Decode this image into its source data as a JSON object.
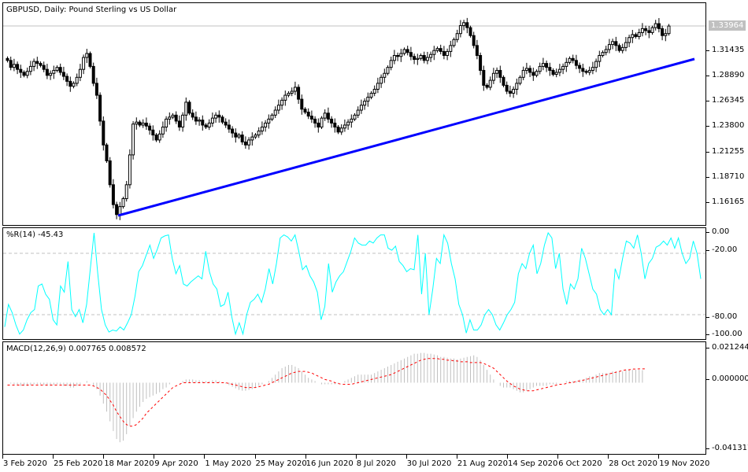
{
  "main_panel": {
    "title": "GBPUSD, Daily:  Pound Sterling vs US Dollar",
    "current_price": "1.33964",
    "price_axis": [
      "1.31435",
      "1.28890",
      "1.26345",
      "1.23800",
      "1.21255",
      "1.18710",
      "1.16165"
    ],
    "trendline_color": "#0000ff"
  },
  "wpr_panel": {
    "title": "%R(14) -45.43",
    "axis": [
      "0.00",
      "-20.00",
      "-80.00",
      "-100.00"
    ],
    "line_color": "#00ffff"
  },
  "macd_panel": {
    "title": "MACD(12,26,9) 0.007765 0.008572",
    "axis": [
      "0.021244",
      "0.000000",
      "-0.041317"
    ],
    "signal_color": "#ff0000",
    "histogram_color": "#c0c0c0"
  },
  "date_axis": [
    "3 Feb 2020",
    "25 Feb 2020",
    "18 Mar 2020",
    "9 Apr 2020",
    "1 May 2020",
    "25 May 2020",
    "16 Jun 2020",
    "8 Jul 2020",
    "30 Jul 2020",
    "21 Aug 2020",
    "14 Sep 2020",
    "6 Oct 2020",
    "28 Oct 2020",
    "19 Nov 2020"
  ],
  "chart_data": [
    {
      "type": "candlestick",
      "title": "GBPUSD, Daily: Pound Sterling vs US Dollar",
      "xlabel": "",
      "ylabel": "",
      "ylim": [
        1.145,
        1.352
      ],
      "x_ticks": [
        "3 Feb 2020",
        "25 Feb 2020",
        "18 Mar 2020",
        "9 Apr 2020",
        "1 May 2020",
        "25 May 2020",
        "16 Jun 2020",
        "8 Jul 2020",
        "30 Jul 2020",
        "21 Aug 2020",
        "14 Sep 2020",
        "6 Oct 2020",
        "28 Oct 2020",
        "19 Nov 2020"
      ],
      "y_ticks": [
        1.31435,
        1.2889,
        1.26345,
        1.238,
        1.21255,
        1.1871,
        1.16165
      ],
      "last_price": 1.33964,
      "closes": [
        1.305,
        1.298,
        1.301,
        1.296,
        1.293,
        1.29,
        1.294,
        1.299,
        1.304,
        1.302,
        1.3,
        1.296,
        1.29,
        1.292,
        1.295,
        1.298,
        1.293,
        1.289,
        1.284,
        1.279,
        1.282,
        1.288,
        1.296,
        1.308,
        1.312,
        1.299,
        1.282,
        1.27,
        1.244,
        1.22,
        1.204,
        1.18,
        1.16,
        1.15,
        1.158,
        1.166,
        1.18,
        1.21,
        1.241,
        1.243,
        1.24,
        1.242,
        1.239,
        1.235,
        1.23,
        1.225,
        1.231,
        1.238,
        1.246,
        1.248,
        1.25,
        1.244,
        1.238,
        1.25,
        1.263,
        1.252,
        1.248,
        1.244,
        1.245,
        1.24,
        1.238,
        1.242,
        1.247,
        1.25,
        1.248,
        1.243,
        1.24,
        1.236,
        1.232,
        1.228,
        1.23,
        1.223,
        1.22,
        1.225,
        1.228,
        1.23,
        1.234,
        1.238,
        1.242,
        1.246,
        1.25,
        1.255,
        1.26,
        1.265,
        1.27,
        1.272,
        1.274,
        1.278,
        1.266,
        1.256,
        1.253,
        1.249,
        1.246,
        1.242,
        1.238,
        1.247,
        1.252,
        1.246,
        1.242,
        1.238,
        1.233,
        1.237,
        1.24,
        1.243,
        1.246,
        1.25,
        1.255,
        1.26,
        1.264,
        1.268,
        1.272,
        1.276,
        1.282,
        1.288,
        1.292,
        1.298,
        1.305,
        1.31,
        1.309,
        1.312,
        1.316,
        1.313,
        1.309,
        1.306,
        1.307,
        1.31,
        1.305,
        1.308,
        1.311,
        1.315,
        1.317,
        1.314,
        1.31,
        1.314,
        1.32,
        1.326,
        1.332,
        1.34,
        1.343,
        1.338,
        1.33,
        1.32,
        1.31,
        1.295,
        1.28,
        1.278,
        1.285,
        1.292,
        1.295,
        1.288,
        1.28,
        1.274,
        1.272,
        1.276,
        1.282,
        1.288,
        1.295,
        1.297,
        1.293,
        1.29,
        1.294,
        1.299,
        1.302,
        1.298,
        1.295,
        1.291,
        1.293,
        1.296,
        1.299,
        1.303,
        1.307,
        1.305,
        1.3,
        1.297,
        1.294,
        1.293,
        1.295,
        1.298,
        1.304,
        1.31,
        1.313,
        1.316,
        1.321,
        1.324,
        1.32,
        1.315,
        1.318,
        1.323,
        1.328,
        1.331,
        1.329,
        1.333,
        1.337,
        1.335,
        1.333,
        1.338,
        1.342,
        1.337,
        1.33,
        1.332,
        1.3396
      ]
    },
    {
      "type": "line",
      "title": "%R(14)",
      "current_value": -45.43,
      "ylim": [
        -100,
        0
      ],
      "levels": [
        -20,
        -80
      ],
      "values": [
        -92,
        -70,
        -78,
        -90,
        -99,
        -95,
        -85,
        -78,
        -75,
        -52,
        -50,
        -60,
        -65,
        -85,
        -90,
        -52,
        -58,
        -28,
        -75,
        -82,
        -75,
        -88,
        -70,
        -35,
        0,
        -40,
        -75,
        -90,
        -97,
        -95,
        -96,
        -92,
        -95,
        -88,
        -80,
        -62,
        -38,
        -32,
        -22,
        -12,
        -25,
        -16,
        -5,
        -3,
        -2,
        -25,
        -40,
        -32,
        -50,
        -52,
        -48,
        -45,
        -42,
        -45,
        -18,
        -38,
        -50,
        -55,
        -72,
        -70,
        -58,
        -82,
        -99,
        -88,
        -99,
        -80,
        -68,
        -65,
        -60,
        -68,
        -55,
        -35,
        -50,
        -30,
        -5,
        -2,
        -4,
        -8,
        -2,
        -18,
        -36,
        -32,
        -42,
        -48,
        -58,
        -85,
        -72,
        -30,
        -58,
        -48,
        -42,
        -38,
        -28,
        -18,
        -5,
        -10,
        -12,
        -12,
        -8,
        -10,
        -5,
        -2,
        -2,
        -15,
        -17,
        -13,
        -28,
        -32,
        -38,
        -35,
        -36,
        -2,
        -60,
        -20,
        -80,
        -55,
        -25,
        -30,
        -2,
        -10,
        -30,
        -45,
        -70,
        -80,
        -98,
        -85,
        -95,
        -95,
        -90,
        -80,
        -75,
        -80,
        -90,
        -95,
        -88,
        -80,
        -75,
        -68,
        -40,
        -30,
        -35,
        -20,
        -12,
        -40,
        -30,
        -12,
        0,
        -5,
        -35,
        -20,
        -55,
        -70,
        -50,
        -55,
        -45,
        -15,
        -25,
        -40,
        -55,
        -60,
        -75,
        -80,
        -75,
        -80,
        -35,
        -45,
        -25,
        -8,
        -10,
        -15,
        -2,
        -20,
        -45,
        -30,
        -25,
        -14,
        -12,
        -8,
        -12,
        -5,
        -15,
        -5,
        -20,
        -30,
        -25,
        -8,
        -20,
        -45
      ]
    },
    {
      "type": "bar+line",
      "title": "MACD(12,26,9)",
      "macd_value": 0.007765,
      "signal_value": 0.008572,
      "ylim": [
        -0.041317,
        0.021244
      ],
      "series": [
        {
          "name": "MACD histogram",
          "color": "#c0c0c0"
        },
        {
          "name": "Signal",
          "color": "#ff0000",
          "style": "dashed"
        }
      ],
      "macd": [
        0.0,
        -0.0005,
        -0.001,
        -0.0015,
        -0.002,
        -0.002,
        -0.002,
        -0.0015,
        -0.001,
        -0.001,
        -0.001,
        -0.0015,
        -0.002,
        -0.002,
        -0.0015,
        -0.001,
        -0.001,
        -0.002,
        -0.002,
        -0.003,
        -0.003,
        -0.002,
        -0.001,
        0.0,
        0.001,
        0.0,
        -0.002,
        -0.004,
        -0.008,
        -0.013,
        -0.018,
        -0.024,
        -0.03,
        -0.035,
        -0.037,
        -0.036,
        -0.032,
        -0.027,
        -0.022,
        -0.018,
        -0.015,
        -0.012,
        -0.01,
        -0.009,
        -0.008,
        -0.007,
        -0.006,
        -0.004,
        -0.003,
        -0.001,
        0.0,
        0.0,
        0.0,
        0.001,
        0.002,
        0.002,
        0.002,
        0.0015,
        0.0015,
        0.001,
        0.001,
        0.001,
        0.0015,
        0.0015,
        0.001,
        0.0,
        -0.0005,
        -0.0015,
        -0.0025,
        -0.0035,
        -0.0045,
        -0.005,
        -0.005,
        -0.0045,
        -0.004,
        -0.003,
        -0.002,
        -0.001,
        0.0,
        0.001,
        0.003,
        0.005,
        0.007,
        0.009,
        0.01,
        0.011,
        0.011,
        0.01,
        0.009,
        0.007,
        0.005,
        0.003,
        0.002,
        0.001,
        0.0,
        -0.001,
        -0.001,
        -0.001,
        -0.001,
        -0.001,
        -0.0005,
        0.0,
        0.001,
        0.002,
        0.003,
        0.004,
        0.005,
        0.005,
        0.005,
        0.005,
        0.005,
        0.006,
        0.007,
        0.008,
        0.009,
        0.01,
        0.011,
        0.012,
        0.013,
        0.014,
        0.015,
        0.016,
        0.017,
        0.018,
        0.018,
        0.0185,
        0.0185,
        0.018,
        0.018,
        0.0175,
        0.017,
        0.016,
        0.016,
        0.0155,
        0.015,
        0.015,
        0.0145,
        0.015,
        0.0155,
        0.016,
        0.0165,
        0.017,
        0.016,
        0.014,
        0.011,
        0.008,
        0.005,
        0.002,
        0.0,
        -0.002,
        -0.003,
        -0.003,
        -0.003,
        -0.004,
        -0.005,
        -0.006,
        -0.006,
        -0.005,
        -0.004,
        -0.003,
        -0.002,
        -0.002,
        -0.002,
        -0.002,
        -0.001,
        -0.001,
        -0.001,
        0.0,
        0.0,
        0.001,
        0.001,
        0.001,
        0.001,
        0.002,
        0.002,
        0.003,
        0.004,
        0.004,
        0.005,
        0.006,
        0.006,
        0.006,
        0.006,
        0.007,
        0.007,
        0.007,
        0.007,
        0.008,
        0.008,
        0.008,
        0.008,
        0.008,
        0.0078
      ],
      "signal": [
        -0.0015,
        -0.0015,
        -0.0015,
        -0.0015,
        -0.0015,
        -0.0015,
        -0.0015,
        -0.0015,
        -0.0015,
        -0.0015,
        -0.0015,
        -0.0015,
        -0.0015,
        -0.0015,
        -0.0015,
        -0.0015,
        -0.0015,
        -0.0015,
        -0.0015,
        -0.0015,
        -0.0015,
        -0.0015,
        -0.0015,
        -0.0015,
        -0.0015,
        -0.0015,
        -0.002,
        -0.003,
        -0.004,
        -0.006,
        -0.008,
        -0.011,
        -0.014,
        -0.018,
        -0.021,
        -0.024,
        -0.026,
        -0.027,
        -0.027,
        -0.026,
        -0.024,
        -0.022,
        -0.019,
        -0.017,
        -0.015,
        -0.013,
        -0.011,
        -0.009,
        -0.007,
        -0.005,
        -0.003,
        -0.002,
        -0.001,
        0.0,
        0.0,
        0.0,
        0.0,
        0.0,
        0.0,
        0.0,
        0.0,
        0.0,
        0.0,
        0.0,
        0.0,
        0.0,
        0.0,
        -0.0005,
        -0.001,
        -0.0015,
        -0.002,
        -0.0025,
        -0.003,
        -0.003,
        -0.003,
        -0.003,
        -0.0025,
        -0.002,
        -0.0015,
        -0.001,
        0.0,
        0.001,
        0.002,
        0.003,
        0.004,
        0.005,
        0.006,
        0.0065,
        0.007,
        0.007,
        0.007,
        0.0065,
        0.006,
        0.005,
        0.004,
        0.003,
        0.002,
        0.0015,
        0.001,
        0.0,
        -0.0005,
        -0.001,
        -0.001,
        -0.001,
        -0.001,
        -0.0005,
        0.0,
        0.0005,
        0.001,
        0.0015,
        0.002,
        0.0025,
        0.003,
        0.0035,
        0.004,
        0.0045,
        0.005,
        0.006,
        0.007,
        0.008,
        0.009,
        0.01,
        0.011,
        0.012,
        0.013,
        0.014,
        0.0145,
        0.015,
        0.015,
        0.015,
        0.015,
        0.0145,
        0.0145,
        0.014,
        0.014,
        0.0135,
        0.0135,
        0.013,
        0.013,
        0.013,
        0.0125,
        0.0125,
        0.0125,
        0.0125,
        0.012,
        0.011,
        0.01,
        0.009,
        0.007,
        0.005,
        0.003,
        0.001,
        -0.0005,
        -0.002,
        -0.003,
        -0.004,
        -0.0045,
        -0.005,
        -0.005,
        -0.005,
        -0.0045,
        -0.004,
        -0.0035,
        -0.003,
        -0.0025,
        -0.002,
        -0.0015,
        -0.001,
        -0.001,
        -0.0005,
        0.0,
        0.0,
        0.001,
        0.001,
        0.0015,
        0.002,
        0.0025,
        0.003,
        0.0035,
        0.004,
        0.0045,
        0.005,
        0.0055,
        0.006,
        0.0065,
        0.007,
        0.0075,
        0.008,
        0.008,
        0.0085,
        0.0085,
        0.0086,
        0.0086,
        0.0086
      ]
    }
  ]
}
